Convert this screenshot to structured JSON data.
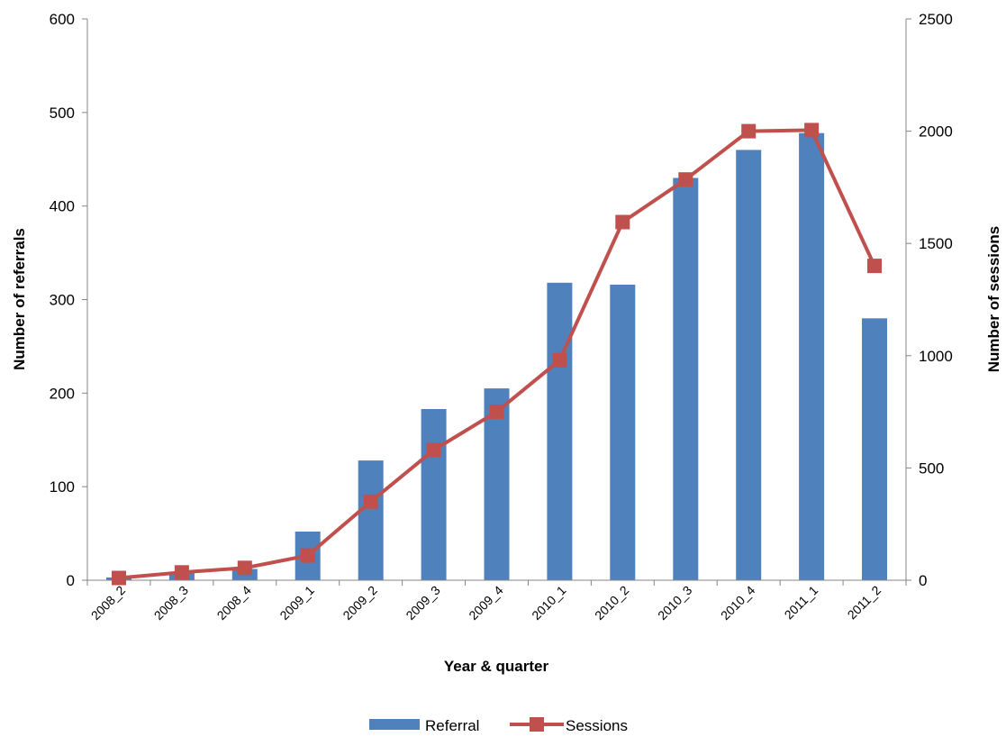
{
  "chart_data": {
    "type": "bar",
    "categories": [
      "2008_2",
      "2008_3",
      "2008_4",
      "2009_1",
      "2009_2",
      "2009_3",
      "2009_4",
      "2010_1",
      "2010_2",
      "2010_3",
      "2010_4",
      "2011_1",
      "2011_2"
    ],
    "series": [
      {
        "name": "Referral",
        "type": "bar",
        "axis": "left",
        "color": "#4F81BD",
        "values": [
          3,
          8,
          12,
          52,
          128,
          183,
          205,
          318,
          316,
          430,
          460,
          478,
          280
        ]
      },
      {
        "name": "Sessions",
        "type": "line",
        "axis": "right",
        "color": "#C0504D",
        "marker": "square",
        "values": [
          10,
          35,
          55,
          110,
          350,
          580,
          750,
          980,
          1595,
          1785,
          2000,
          2005,
          1400
        ]
      }
    ],
    "xlabel": "Year & quarter",
    "ylabel": "Number of referrals",
    "y2label": "Number of sessions",
    "ylim": [
      0,
      600
    ],
    "y2lim": [
      0,
      2500
    ],
    "yticks": [
      0,
      100,
      200,
      300,
      400,
      500,
      600
    ],
    "y2ticks": [
      0,
      500,
      1000,
      1500,
      2000,
      2500
    ],
    "grid": false,
    "legend": "bottom"
  }
}
